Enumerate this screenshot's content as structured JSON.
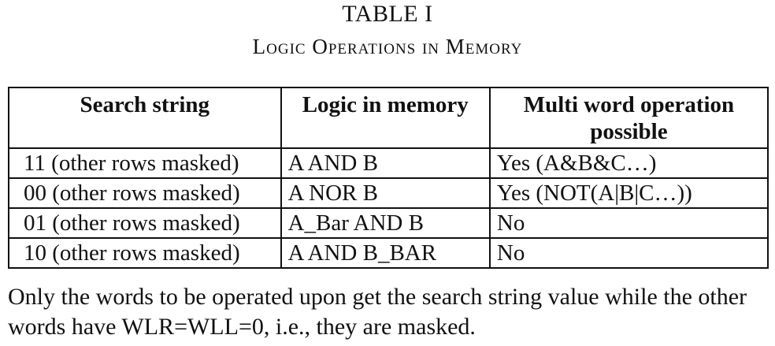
{
  "caption": {
    "label": "TABLE I",
    "title": "Logic Operations in Memory"
  },
  "table": {
    "headers": [
      "Search string",
      "Logic in memory",
      "Multi word operation possible"
    ],
    "rows": [
      [
        "11 (other rows masked)",
        "A AND B",
        "Yes (A&B&C…)"
      ],
      [
        "00 (other rows masked)",
        "A NOR B",
        "Yes (NOT(A|B|C…))"
      ],
      [
        "01 (other rows masked)",
        "A_Bar AND B",
        "No"
      ],
      [
        "10 (other rows masked)",
        "A AND B_BAR",
        "No"
      ]
    ]
  },
  "footnote": "Only the words to be operated upon get the search string value while the other words have WLR=WLL=0, i.e., they are masked."
}
